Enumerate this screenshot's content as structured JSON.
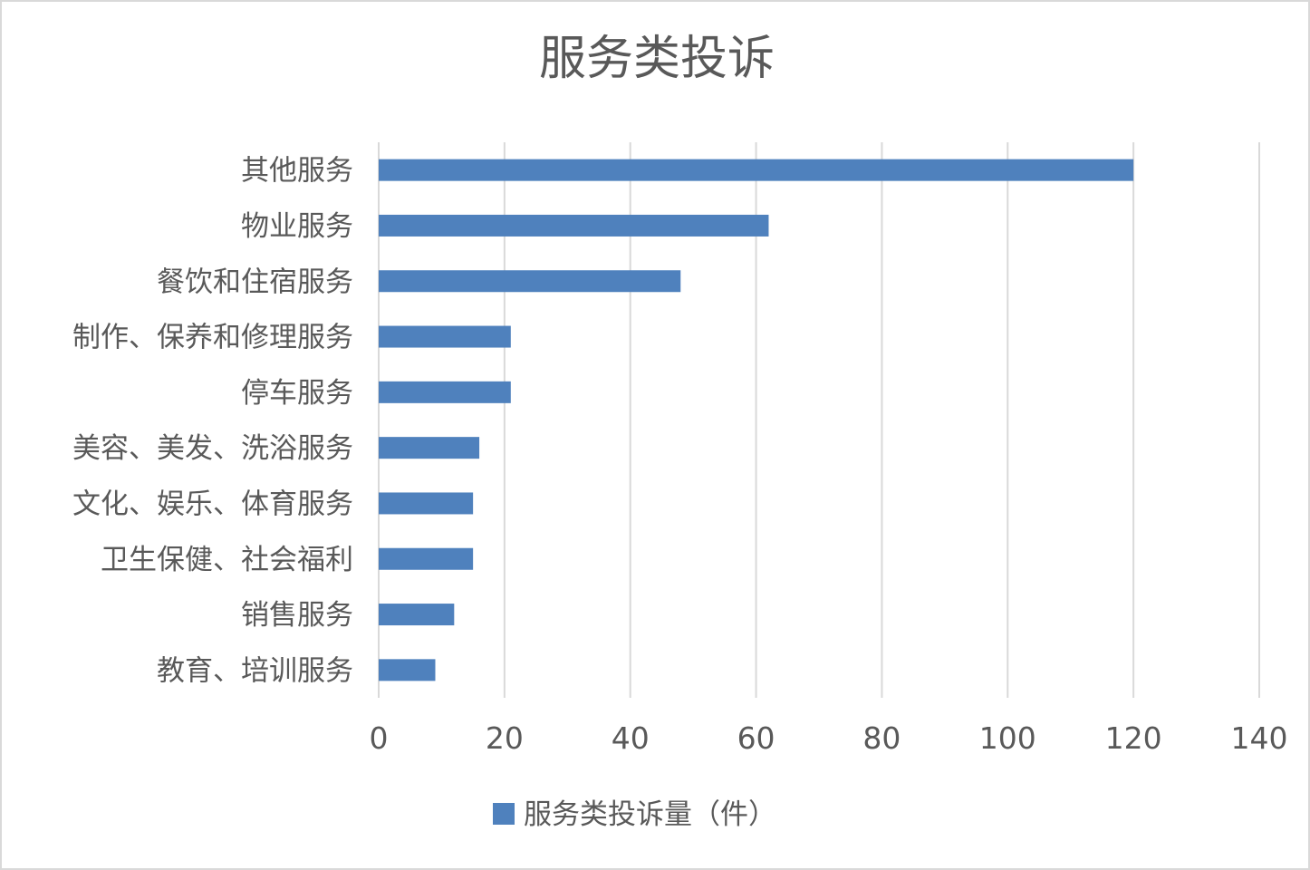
{
  "chart_data": {
    "type": "bar",
    "orientation": "horizontal",
    "title": "服务类投诉",
    "categories": [
      "其他服务",
      "物业服务",
      "餐饮和住宿服务",
      "制作、保养和修理服务",
      "停车服务",
      "美容、美发、洗浴服务",
      "文化、娱乐、体育服务",
      "卫生保健、社会福利",
      "销售服务",
      "教育、培训服务"
    ],
    "series": [
      {
        "name": "服务类投诉量（件）",
        "color": "#4f81bd",
        "values": [
          120,
          62,
          48,
          21,
          21,
          16,
          15,
          15,
          12,
          9
        ]
      }
    ],
    "xlim": [
      0,
      140
    ],
    "xticks": [
      0,
      20,
      40,
      60,
      80,
      100,
      120,
      140
    ],
    "grid": true,
    "legend_position": "bottom"
  }
}
